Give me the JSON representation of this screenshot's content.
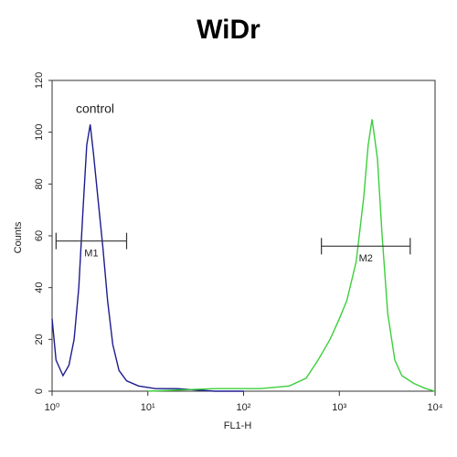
{
  "chart_data": {
    "type": "line",
    "title": "WiDr",
    "x_label": "FL1-H",
    "y_label": "Counts",
    "xscale": "log",
    "xlim": [
      1,
      10000
    ],
    "ylim": [
      0,
      120
    ],
    "xticks": [
      {
        "value": 1,
        "label": "10⁰"
      },
      {
        "value": 10,
        "label": "10¹"
      },
      {
        "value": 100,
        "label": "10²"
      },
      {
        "value": 1000,
        "label": "10³"
      },
      {
        "value": 10000,
        "label": "10⁴"
      }
    ],
    "yticks": [
      0,
      20,
      40,
      60,
      80,
      100,
      120
    ],
    "series": [
      {
        "name": "control",
        "color": "#1c1c8f",
        "x": [
          1.0,
          1.1,
          1.3,
          1.5,
          1.7,
          1.9,
          2.1,
          2.3,
          2.5,
          2.7,
          3.0,
          3.4,
          3.8,
          4.3,
          5.0,
          6.0,
          8.0,
          12,
          20,
          50,
          100
        ],
        "values": [
          28,
          12,
          6,
          10,
          20,
          40,
          70,
          95,
          103,
          92,
          75,
          55,
          35,
          18,
          8,
          4,
          2,
          1,
          1,
          0,
          0
        ]
      },
      {
        "color": "#3ccf3c",
        "x": [
          10,
          50,
          150,
          300,
          450,
          600,
          800,
          1000,
          1200,
          1500,
          1800,
          2000,
          2200,
          2500,
          2800,
          3200,
          3800,
          4500,
          6000,
          8000,
          10000
        ],
        "values": [
          0,
          1,
          1,
          2,
          5,
          12,
          20,
          28,
          35,
          50,
          75,
          95,
          105,
          90,
          60,
          30,
          12,
          6,
          3,
          1,
          0
        ]
      }
    ],
    "markers": [
      {
        "label": "M1",
        "x": [
          1.1,
          6
        ],
        "y": 58
      },
      {
        "label": "M2",
        "x": [
          650,
          5500
        ],
        "y": 56
      }
    ]
  }
}
